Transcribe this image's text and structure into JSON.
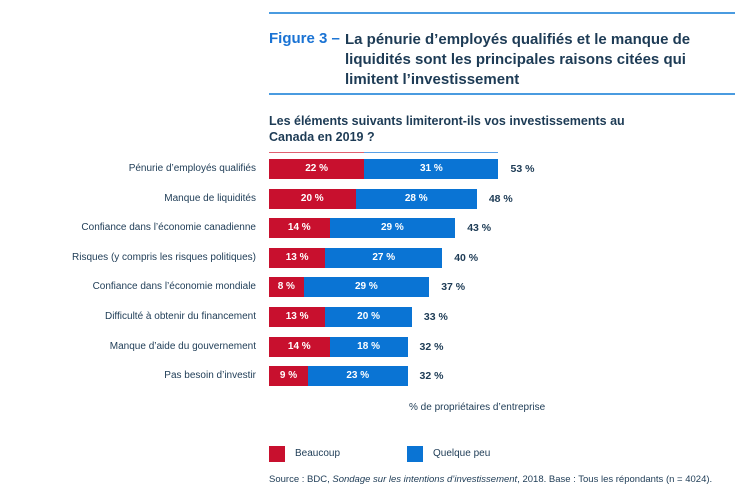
{
  "figure": {
    "label": "Figure 3 –",
    "title": "La pénurie d’employés qualifiés et le manque de liquidités sont les principales raisons citées qui limitent l’investissement"
  },
  "question": "Les éléments suivants limiteront-ils vos investissements au Canada en 2019 ?",
  "colors": {
    "beaucoup": "#c8102e",
    "quelque_peu": "#0a74d4",
    "accent": "#1a73d4"
  },
  "chart_data": {
    "type": "bar",
    "orientation": "horizontal",
    "stacked": true,
    "title": "Les éléments suivants limiteront-ils vos investissements au Canada en 2019 ?",
    "xlabel": "% de propriétaires d’entreprise",
    "ylabel": "",
    "xlim": [
      0,
      60
    ],
    "grid": false,
    "legend_position": "bottom-left",
    "categories": [
      "Pénurie d’employés qualifiés",
      "Manque de liquidités",
      "Confiance dans l’économie canadienne",
      "Risques (y compris les risques politiques)",
      "Confiance dans l’économie mondiale",
      "Difficulté à obtenir du financement",
      "Manque d’aide du gouvernement",
      "Pas besoin d’investir"
    ],
    "series": [
      {
        "name": "Beaucoup",
        "color": "#c8102e",
        "values": [
          22,
          20,
          14,
          13,
          8,
          13,
          14,
          9
        ]
      },
      {
        "name": "Quelque peu",
        "color": "#0a74d4",
        "values": [
          31,
          28,
          29,
          27,
          29,
          20,
          18,
          23
        ]
      }
    ],
    "totals": [
      53,
      48,
      43,
      40,
      37,
      33,
      32,
      32
    ],
    "value_suffix": " %"
  },
  "legend": [
    {
      "label": "Beaucoup",
      "color": "#c8102e"
    },
    {
      "label": "Quelque peu",
      "color": "#0a74d4"
    }
  ],
  "source": {
    "prefix": "Source : BDC, ",
    "italic": "Sondage sur les intentions d’investissement",
    "suffix": ", 2018. Base : Tous les répondants (n = 4024)."
  }
}
